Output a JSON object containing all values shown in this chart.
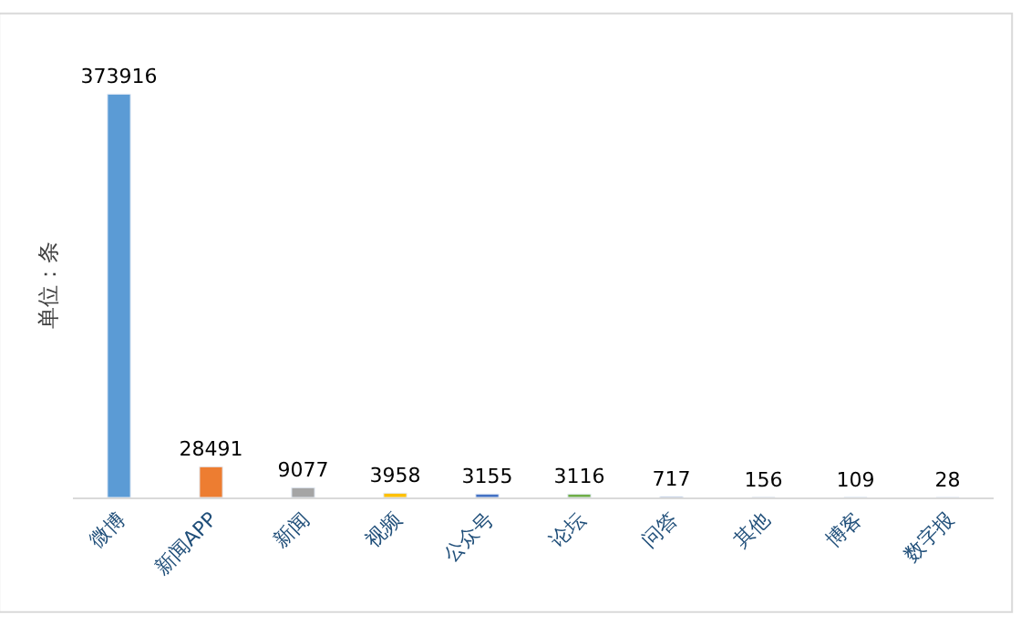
{
  "chart_data": {
    "type": "bar",
    "ylabel": "单位：条",
    "categories": [
      "微博",
      "新闻APP",
      "新闻",
      "视频",
      "公众号",
      "论坛",
      "问答",
      "其他",
      "博客",
      "数字报"
    ],
    "values": [
      373916,
      28491,
      9077,
      3958,
      3155,
      3116,
      717,
      156,
      109,
      28
    ],
    "colors": [
      "#5b9bd5",
      "#ed7d31",
      "#a5a5a5",
      "#ffc000",
      "#4472c4",
      "#70ad47",
      "#264478",
      "#9e480e",
      "#636363",
      "#997300"
    ],
    "data_labels": true
  }
}
